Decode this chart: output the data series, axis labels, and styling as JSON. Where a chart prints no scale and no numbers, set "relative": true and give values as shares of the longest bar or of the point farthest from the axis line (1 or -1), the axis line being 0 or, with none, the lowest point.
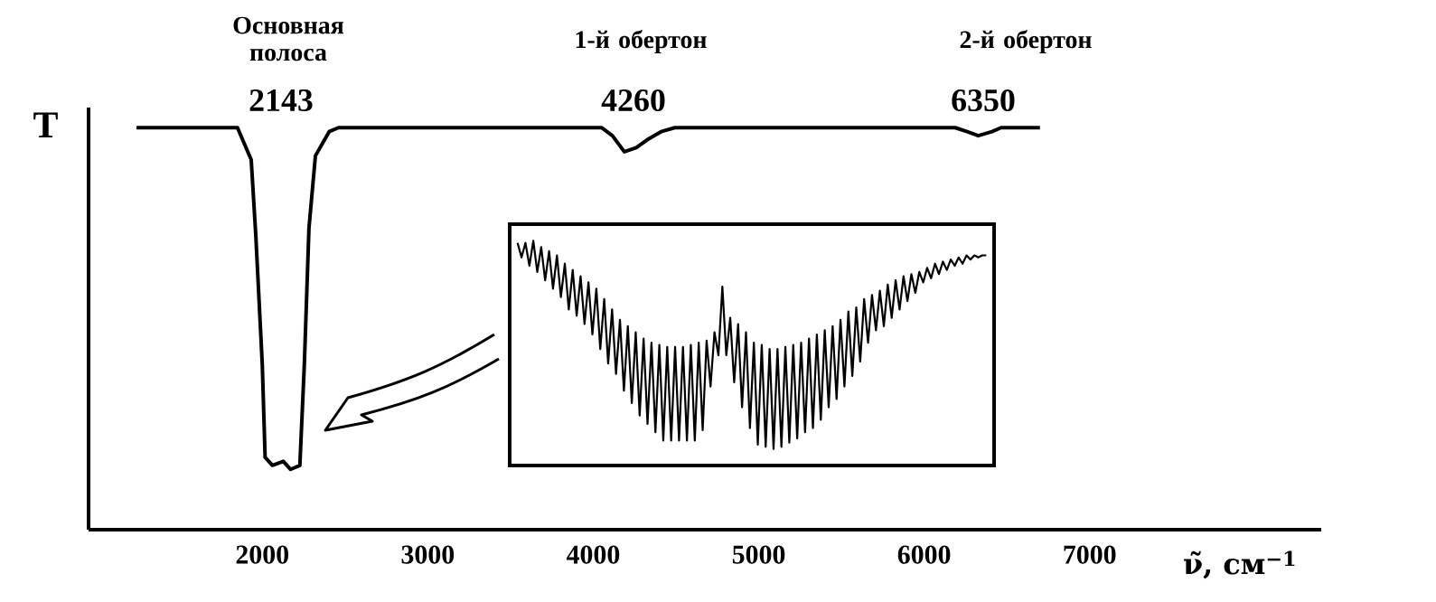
{
  "chart_data": [
    {
      "type": "line",
      "relative": true,
      "xlim": [
        950,
        8400
      ],
      "xticks": [
        2000,
        3000,
        4000,
        5000,
        6000,
        7000
      ],
      "xlabel": "ν̃, см$^{−1}$",
      "ylabel": "T",
      "color": "#000000",
      "x": [
        1240,
        1850,
        1933,
        1961,
        2000,
        2017,
        2061,
        2127,
        2171,
        2227,
        2254,
        2282,
        2321,
        2404,
        2460,
        4050,
        4116,
        4188,
        4260,
        4327,
        4410,
        4493,
        6188,
        6260,
        6327,
        6410,
        6465,
        6700
      ],
      "values": [
        1.0,
        1.0,
        0.92,
        0.73,
        0.41,
        0.18,
        0.16,
        0.17,
        0.15,
        0.16,
        0.41,
        0.75,
        0.93,
        0.99,
        1.0,
        1.0,
        0.98,
        0.94,
        0.95,
        0.97,
        0.99,
        1.0,
        1.0,
        0.99,
        0.98,
        0.99,
        1.0,
        1.0
      ],
      "annotations": [
        "Основная полоса",
        "2143",
        "1-й обертон",
        "4260",
        "2-й обертон",
        "6350"
      ]
    },
    {
      "type": "line",
      "relative": true,
      "color": "#000000",
      "categories": [
        null,
        null,
        null,
        null,
        null,
        null,
        null,
        null,
        null,
        null,
        null,
        null,
        null,
        null,
        null,
        null,
        null,
        null,
        null,
        null,
        null,
        null,
        null,
        null,
        null,
        null,
        null,
        null,
        null,
        null,
        null,
        null,
        null,
        null,
        null,
        null,
        null,
        null,
        null,
        null,
        null,
        null,
        null,
        null,
        null,
        null,
        null,
        null,
        null,
        null,
        null,
        null,
        null,
        null,
        null,
        null,
        null,
        null,
        null,
        null,
        null,
        null,
        null,
        null,
        null,
        null,
        null,
        null,
        null,
        null,
        null,
        null,
        null,
        null,
        null,
        null,
        null,
        null,
        null,
        null,
        null,
        null,
        null,
        null,
        null,
        null,
        null,
        null,
        null,
        null,
        null,
        null,
        null,
        null,
        null,
        null,
        null,
        null,
        null,
        null,
        null,
        null,
        null,
        null,
        null,
        null,
        null,
        null,
        null,
        null,
        null,
        null,
        null,
        null,
        null,
        null,
        null,
        null,
        null,
        null
      ],
      "values": [
        0.99,
        0.92,
        0.99,
        0.88,
        1.0,
        0.85,
        0.97,
        0.81,
        0.95,
        0.77,
        0.93,
        0.73,
        0.89,
        0.67,
        0.86,
        0.64,
        0.83,
        0.6,
        0.8,
        0.55,
        0.77,
        0.48,
        0.72,
        0.41,
        0.67,
        0.36,
        0.62,
        0.28,
        0.59,
        0.22,
        0.56,
        0.16,
        0.53,
        0.12,
        0.51,
        0.08,
        0.5,
        0.04,
        0.49,
        0.04,
        0.49,
        0.04,
        0.49,
        0.04,
        0.5,
        0.04,
        0.51,
        0.09,
        0.52,
        0.3,
        0.56,
        0.45,
        0.78,
        0.45,
        0.63,
        0.32,
        0.6,
        0.2,
        0.56,
        0.1,
        0.51,
        0.02,
        0.5,
        0.01,
        0.48,
        0.0,
        0.48,
        0.01,
        0.49,
        0.03,
        0.5,
        0.05,
        0.51,
        0.08,
        0.53,
        0.1,
        0.55,
        0.14,
        0.57,
        0.2,
        0.59,
        0.24,
        0.62,
        0.3,
        0.66,
        0.35,
        0.68,
        0.42,
        0.72,
        0.51,
        0.74,
        0.57,
        0.76,
        0.59,
        0.79,
        0.63,
        0.81,
        0.67,
        0.83,
        0.71,
        0.84,
        0.75,
        0.85,
        0.8,
        0.87,
        0.82,
        0.89,
        0.84,
        0.9,
        0.86,
        0.91,
        0.88,
        0.92,
        0.89,
        0.93,
        0.91,
        0.93,
        0.92,
        0.93,
        0.93
      ]
    }
  ]
}
